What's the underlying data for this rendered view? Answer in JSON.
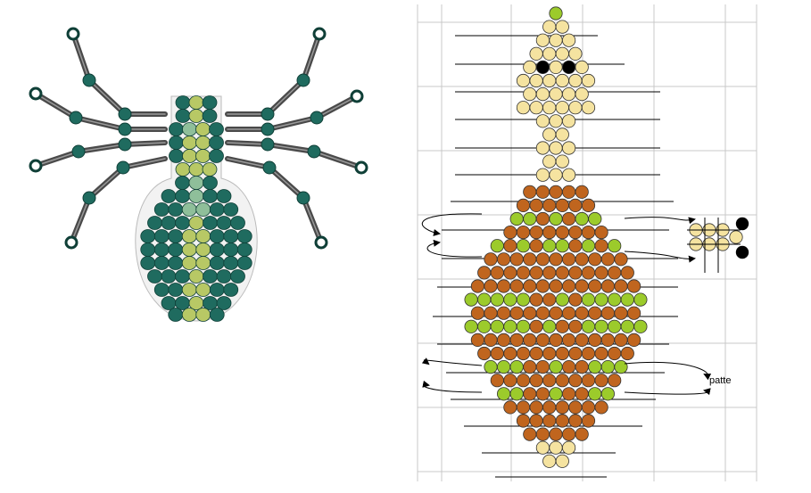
{
  "colors": {
    "spider_bead": "#1f6b5f",
    "spider_bead_edge": "#0f3f37",
    "spider_light": "#b8c865",
    "spider_mid": "#8fbf9a",
    "spider_bugle": "#4a4a4a",
    "pattern_cream": "#f5e3a0",
    "pattern_brown": "#c0651e",
    "pattern_green": "#9ccb2b",
    "pattern_eye": "#000000",
    "grid_line": "#c9c9c9",
    "thread_line": "#000000"
  },
  "pattern": {
    "side_label": "patte"
  }
}
